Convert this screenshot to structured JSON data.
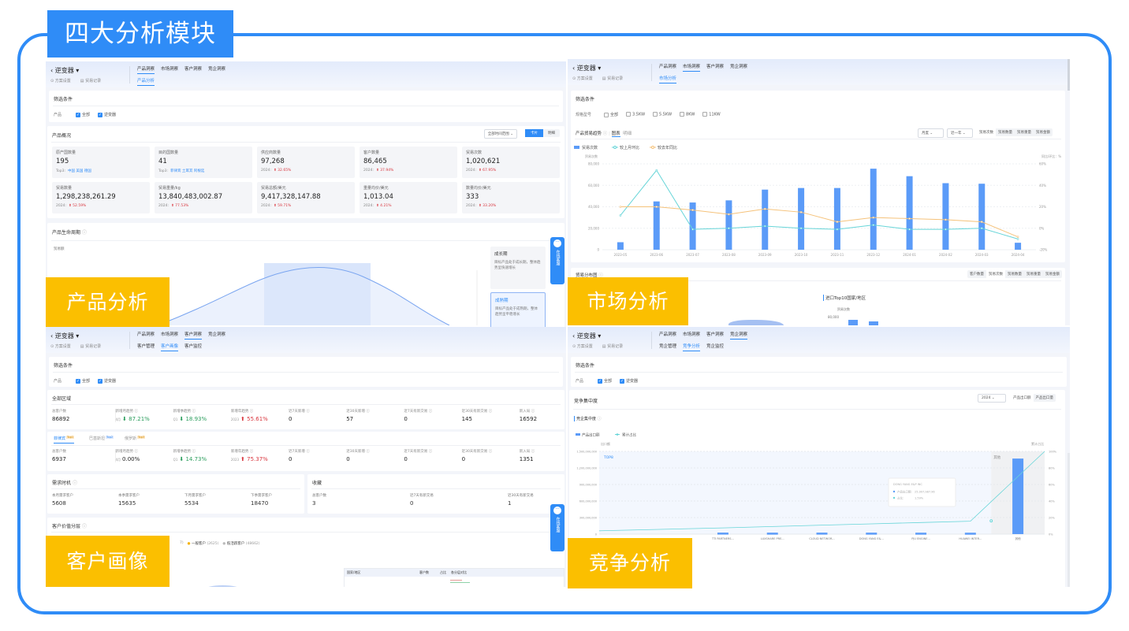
{
  "banner": {
    "title": "四大分析模块"
  },
  "section_labels": {
    "product": "产品分析",
    "market": "市场分析",
    "customer": "客户画像",
    "competition": "竞争分析"
  },
  "colors": {
    "frame": "#2f8cf7",
    "label_bg": "#fbbf00",
    "bar": "#5b9bf8",
    "line_mom": "#67d5d8",
    "line_yoy": "#f5c27a",
    "up": "#d9363e",
    "down": "#2a9d5c"
  },
  "common": {
    "product_name": "逆变器",
    "plan_settings": "方案设置",
    "trade_records": "贸易记录",
    "nav": [
      "产品洞察",
      "市场洞察",
      "客户洞察",
      "竞企洞察"
    ],
    "filter_title": "筛选条件",
    "product_label": "产品",
    "opt_all": "全部",
    "opt_product": "逆变器",
    "chat": "在线客服"
  },
  "product": {
    "sub_tabs": [
      "产品分析"
    ],
    "overview_title": "产品概况",
    "range_select": "全部时间范围",
    "view_buttons": [
      "卡片",
      "明细"
    ],
    "kpis": [
      {
        "label": "原产国数量",
        "value": "195",
        "prefix": "Top3:",
        "extra": "中国 美国 德国",
        "trend": ""
      },
      {
        "label": "目的国数量",
        "value": "41",
        "prefix": "Top3:",
        "extra": "菲律宾 土耳其 阿根廷",
        "trend": ""
      },
      {
        "label": "供应商数量",
        "value": "97,268",
        "prefix": "2024:",
        "extra": "",
        "trend": "32.65%"
      },
      {
        "label": "客户数量",
        "value": "86,465",
        "prefix": "2024:",
        "extra": "",
        "trend": "37.94%"
      },
      {
        "label": "贸易次数",
        "value": "1,020,621",
        "prefix": "2024:",
        "extra": "",
        "trend": "67.95%"
      },
      {
        "label": "贸易数量",
        "value": "1,298,238,261.29",
        "prefix": "2024:",
        "extra": "",
        "trend": "52.59%"
      },
      {
        "label": "贸易重量/kg",
        "value": "13,840,483,002.87",
        "prefix": "2024:",
        "extra": "",
        "trend": "77.53%"
      },
      {
        "label": "贸易总额/美元",
        "value": "9,417,328,147.88",
        "prefix": "2024:",
        "extra": "",
        "trend": "59.71%"
      },
      {
        "label": "重量均价/美元",
        "value": "1,013.04",
        "prefix": "2024:",
        "extra": "",
        "trend": "4.21%"
      },
      {
        "label": "数量均价/美元",
        "value": "333",
        "prefix": "2024:",
        "extra": "",
        "trend": "33.20%"
      }
    ],
    "lifecycle_title": "产品生命周期",
    "lifecycle_ylabel": "贸易额",
    "stages": [
      {
        "title": "成长期",
        "desc": "目标产品处于成长期，整体趋势呈快速增长"
      },
      {
        "title": "成熟期",
        "desc": "目标产品处于成熟期，整体趋势呈平稳增长"
      }
    ]
  },
  "market": {
    "sub_tabs": [
      "市场分析"
    ],
    "spec_label": "规格型号",
    "spec_options": [
      "全部",
      "3.5KW",
      "5.5KW",
      "8KW",
      "11KW"
    ],
    "trend_title": "产品贸易趋势",
    "view_tabs": [
      "图表",
      "明细"
    ],
    "period_select": "月度",
    "range_select": "近一年",
    "metric_buttons": [
      "贸易次数",
      "贸易数量",
      "贸易重量",
      "贸易金额"
    ],
    "distribution_title": "贸易分布图",
    "distribution_buttons": [
      "客户数量",
      "贸易次数",
      "贸易数量",
      "贸易重量",
      "贸易金额"
    ],
    "import_title": "进口Top10国家/地区",
    "import_ylabel": "贸易次数",
    "import_ytick": "80,000"
  },
  "customer": {
    "sub_tabs": [
      "客户管理",
      "客户画像",
      "客户监控"
    ],
    "region_title": "全部区域",
    "stat_labels": [
      "总客户数",
      "新增月趋势",
      "新增季趋势",
      "新增年趋势",
      "近7天新增",
      "近30天新增",
      "近7天有新交易",
      "近30天有新交易",
      "新入局"
    ],
    "all_stats": [
      {
        "value": "86892"
      },
      {
        "period": "4月",
        "value": "87.21%",
        "dir": "down"
      },
      {
        "period": "Q1",
        "value": "18.93%",
        "dir": "down"
      },
      {
        "period": "2023",
        "value": "55.61%",
        "dir": "up"
      },
      {
        "value": "0"
      },
      {
        "value": "57"
      },
      {
        "value": "0"
      },
      {
        "value": "145"
      },
      {
        "value": "16592"
      }
    ],
    "country_tabs": [
      {
        "name": "菲律宾",
        "badge": "Top1"
      },
      {
        "name": "巴基斯坦",
        "badge": "Top2"
      },
      {
        "name": "俄罗斯",
        "badge": "Top3"
      }
    ],
    "country_stats": [
      {
        "value": "6937"
      },
      {
        "period": "4月",
        "value": "0.00%",
        "dir": ""
      },
      {
        "period": "Q1",
        "value": "14.73%",
        "dir": "down"
      },
      {
        "period": "2023",
        "value": "75.37%",
        "dir": "up"
      },
      {
        "value": "0"
      },
      {
        "value": "0"
      },
      {
        "value": "0"
      },
      {
        "value": "0"
      },
      {
        "value": "1351"
      }
    ],
    "demand_title": "需求时机",
    "demand": [
      {
        "label": "本月需求客户",
        "value": "5608"
      },
      {
        "label": "本季需求客户",
        "value": "15635"
      },
      {
        "label": "下月需求客户",
        "value": "5534"
      },
      {
        "label": "下季需求客户",
        "value": "18470"
      }
    ],
    "favorites_title": "收藏",
    "favorites": [
      {
        "label": "总客户数",
        "value": "3"
      },
      {
        "label": "近7天有新交易",
        "value": "0"
      },
      {
        "label": "近30天有新交易",
        "value": "1"
      }
    ],
    "value_title": "客户价值分层",
    "value_legend": [
      {
        "label": "7)",
        "color": "#999"
      },
      {
        "label": "一般客户",
        "count": "(2625)",
        "color": "#f5b300"
      },
      {
        "label": "低活跃客户",
        "count": "(48662)",
        "color": "#bbb"
      }
    ],
    "table_headers": [
      "国家/地区",
      "客户数",
      "占比",
      "各分层对比"
    ]
  },
  "competition": {
    "sub_tabs": [
      "竞企管理",
      "竞争分析",
      "竞企监控"
    ],
    "title": "竞争集中度",
    "year_select": "2024",
    "metric_buttons": [
      "产品出口额",
      "产品出口量"
    ],
    "chart_title": "竞企集中度"
  },
  "chart_data": [
    {
      "type": "bar+line",
      "title": "",
      "categories": [
        "2023-05",
        "2023-06",
        "2023-07",
        "2023-08",
        "2023-09",
        "2023-10",
        "2023-11",
        "2023-12",
        "2024-01",
        "2024-02",
        "2024-03",
        "2024-04"
      ],
      "ylabel": "贸易次数",
      "ylabel_right": "同比/环比：%",
      "ylim": [
        0,
        80000
      ],
      "ylim_right": [
        -20,
        60
      ],
      "yticks": [
        "0",
        "20,000",
        "40,000",
        "60,000",
        "80,000"
      ],
      "yticks_right": [
        "-20%",
        "0%",
        "20%",
        "40%",
        "60%"
      ],
      "grid": true,
      "legend": "top-left",
      "series": [
        {
          "name": "贸易次数",
          "type": "bar",
          "values": [
            7000,
            45000,
            44000,
            46000,
            56000,
            57500,
            57500,
            75500,
            68500,
            62000,
            61500,
            6500
          ]
        },
        {
          "name": "较上月环比",
          "type": "line",
          "axis": "right",
          "values": [
            12,
            54,
            -1,
            0,
            2,
            0,
            -1,
            3,
            -1,
            -1,
            0,
            -10
          ]
        },
        {
          "name": "较去年同比",
          "type": "line",
          "axis": "right",
          "values": [
            20,
            20,
            17,
            13,
            18,
            15,
            6,
            10,
            9,
            8,
            6,
            -8
          ]
        }
      ]
    },
    {
      "type": "bar+line",
      "title": "",
      "categories": [
        "TTI PARTNERS...",
        "LUXSHARE PRE...",
        "CLOUD NETWOR...",
        "DONG YANG E&...",
        "PJU ENGINE...",
        "HUAWEI INTER...",
        "其他"
      ],
      "ylabel": "出口额",
      "ylabel_right": "累计占比",
      "ylim": [
        0,
        1500000000
      ],
      "ylim_right": [
        0,
        100
      ],
      "yticks": [
        "0",
        "300,000,000",
        "600,000,000",
        "900,000,000",
        "1,200,000,000",
        "1,500,000,000"
      ],
      "yticks_right": [
        "0%",
        "20%",
        "40%",
        "60%",
        "80%",
        "100%"
      ],
      "grid": true,
      "legend": "top-left",
      "bands": [
        "TOP8",
        "其他"
      ],
      "series": [
        {
          "name": "产品出口额",
          "type": "bar",
          "values": [
            27000000,
            26000000,
            26500000,
            25997987.96,
            25500000,
            25000000,
            1370000000
          ]
        },
        {
          "name": "累计占比",
          "type": "line",
          "axis": "right",
          "values": [
            7.5,
            9.2,
            10.8,
            12.4,
            14,
            15.6,
            100
          ]
        }
      ],
      "tooltip": {
        "title": "DONG YANG E&P INC",
        "rows": [
          {
            "label": "产品出口额:",
            "value": "25,997,987.96"
          },
          {
            "label": "占比:",
            "value": "1.59%"
          }
        ]
      }
    }
  ]
}
